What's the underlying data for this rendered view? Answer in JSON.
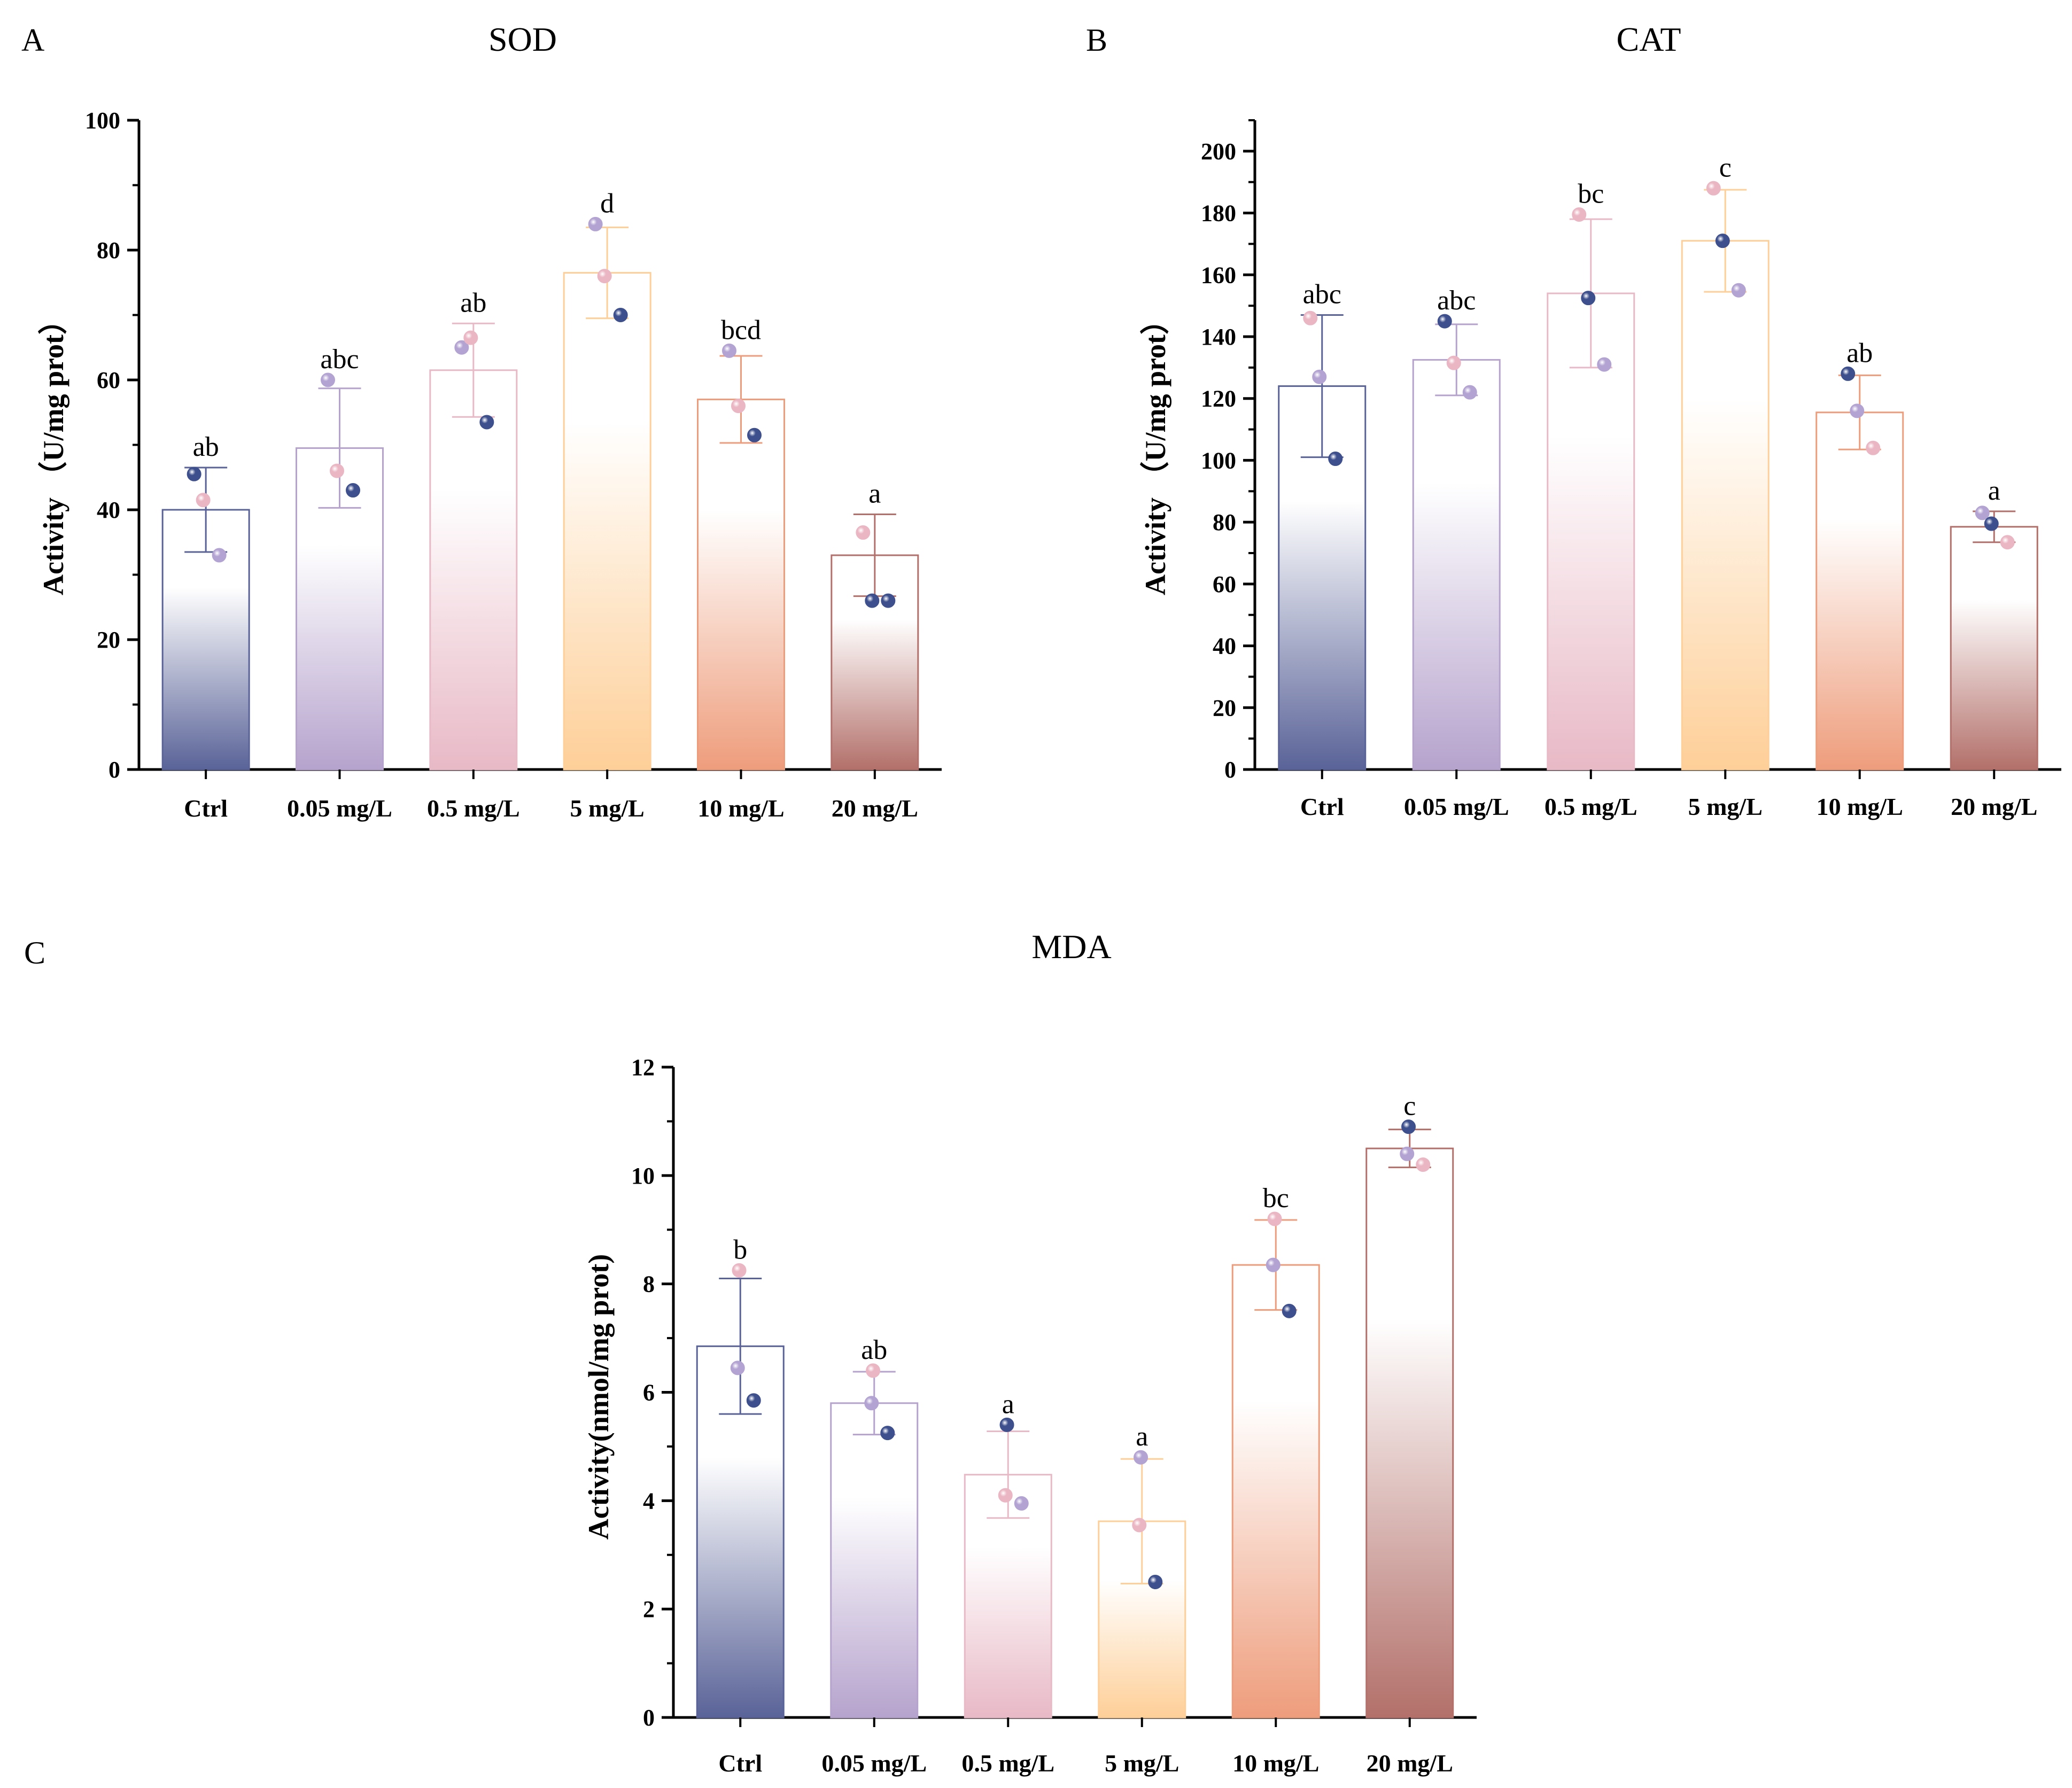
{
  "colors": {
    "palette": [
      "#5a6398",
      "#b6a3cd",
      "#e8b9c6",
      "#fecf98",
      "#ee9d7c",
      "#b3706a"
    ],
    "dot_dark": "#3d4f8c",
    "dot_purple": "#b3a3d2",
    "dot_pink": "#eab6c4"
  },
  "categories": [
    "Ctrl",
    "0.05 mg/L",
    "0.5 mg/L",
    "5 mg/L",
    "10 mg/L",
    "20 mg/L"
  ],
  "chart_data": [
    {
      "panel": "A",
      "type": "bar",
      "title": "SOD",
      "ylabel": "Activity （U/mg prot）",
      "xlabel": "",
      "ylim": [
        0,
        100
      ],
      "yticks": [
        0,
        20,
        40,
        60,
        80,
        100
      ],
      "categories": [
        "Ctrl",
        "0.05 mg/L",
        "0.5 mg/L",
        "5 mg/L",
        "10 mg/L",
        "20 mg/L"
      ],
      "values": [
        40.0,
        49.5,
        61.5,
        76.5,
        57.0,
        33.0
      ],
      "error": [
        6.5,
        9.2,
        7.2,
        7.0,
        6.7,
        6.3
      ],
      "significance": [
        "ab",
        "abc",
        "ab",
        "d",
        "bcd",
        "a"
      ],
      "points": [
        [
          45.5,
          41.5,
          33.0
        ],
        [
          60.0,
          46.0,
          43.0
        ],
        [
          65.0,
          66.5,
          53.5
        ],
        [
          84.0,
          76.0,
          70.0
        ],
        [
          64.5,
          56.0,
          51.5
        ],
        [
          36.5,
          26.0,
          26.0
        ]
      ],
      "point_colors": [
        [
          "dark",
          "pink",
          "purple"
        ],
        [
          "purple",
          "pink",
          "dark"
        ],
        [
          "purple",
          "pink",
          "dark"
        ],
        [
          "purple",
          "pink",
          "dark"
        ],
        [
          "purple",
          "pink",
          "dark"
        ],
        [
          "pink",
          "dark",
          "dark"
        ]
      ]
    },
    {
      "panel": "B",
      "type": "bar",
      "title": "CAT",
      "ylabel": "Activity （U/mg prot）",
      "xlabel": "",
      "ylim": [
        0,
        210
      ],
      "yticks": [
        0,
        20,
        40,
        60,
        80,
        100,
        120,
        140,
        160,
        180,
        200
      ],
      "categories": [
        "Ctrl",
        "0.05 mg/L",
        "0.5 mg/L",
        "5 mg/L",
        "10 mg/L",
        "20 mg/L"
      ],
      "values": [
        124.0,
        132.5,
        154.0,
        171.0,
        115.5,
        78.5
      ],
      "error": [
        23.0,
        11.5,
        24.0,
        16.5,
        12.0,
        5.0
      ],
      "significance": [
        "abc",
        "abc",
        "bc",
        "c",
        "ab",
        "a"
      ],
      "points": [
        [
          146.0,
          127.0,
          100.5
        ],
        [
          145.0,
          131.5,
          122.0
        ],
        [
          179.5,
          152.5,
          131.0
        ],
        [
          188.0,
          171.0,
          155.0
        ],
        [
          128.0,
          116.0,
          104.0
        ],
        [
          83.0,
          79.5,
          73.5
        ]
      ],
      "point_colors": [
        [
          "pink",
          "purple",
          "dark"
        ],
        [
          "dark",
          "pink",
          "purple"
        ],
        [
          "pink",
          "dark",
          "purple"
        ],
        [
          "pink",
          "dark",
          "purple"
        ],
        [
          "dark",
          "purple",
          "pink"
        ],
        [
          "purple",
          "dark",
          "pink"
        ]
      ]
    },
    {
      "panel": "C",
      "type": "bar",
      "title": "MDA",
      "ylabel": "Activity(nmol/mg prot)",
      "xlabel": "",
      "ylim": [
        0,
        12
      ],
      "yticks": [
        0,
        2,
        4,
        6,
        8,
        10,
        12
      ],
      "categories": [
        "Ctrl",
        "0.05 mg/L",
        "0.5 mg/L",
        "5 mg/L",
        "10 mg/L",
        "20 mg/L"
      ],
      "values": [
        6.85,
        5.8,
        4.48,
        3.62,
        8.35,
        10.5
      ],
      "error": [
        1.25,
        0.58,
        0.8,
        1.15,
        0.83,
        0.35
      ],
      "significance": [
        "b",
        "ab",
        "a",
        "a",
        "bc",
        "c"
      ],
      "points": [
        [
          8.25,
          6.45,
          5.85
        ],
        [
          6.4,
          5.8,
          5.25
        ],
        [
          5.4,
          4.1,
          3.95
        ],
        [
          4.8,
          3.55,
          2.5
        ],
        [
          9.2,
          8.35,
          7.5
        ],
        [
          10.9,
          10.4,
          10.2
        ]
      ],
      "point_colors": [
        [
          "pink",
          "purple",
          "dark"
        ],
        [
          "pink",
          "purple",
          "dark"
        ],
        [
          "dark",
          "pink",
          "purple"
        ],
        [
          "purple",
          "pink",
          "dark"
        ],
        [
          "pink",
          "purple",
          "dark"
        ],
        [
          "dark",
          "purple",
          "pink"
        ]
      ]
    }
  ]
}
